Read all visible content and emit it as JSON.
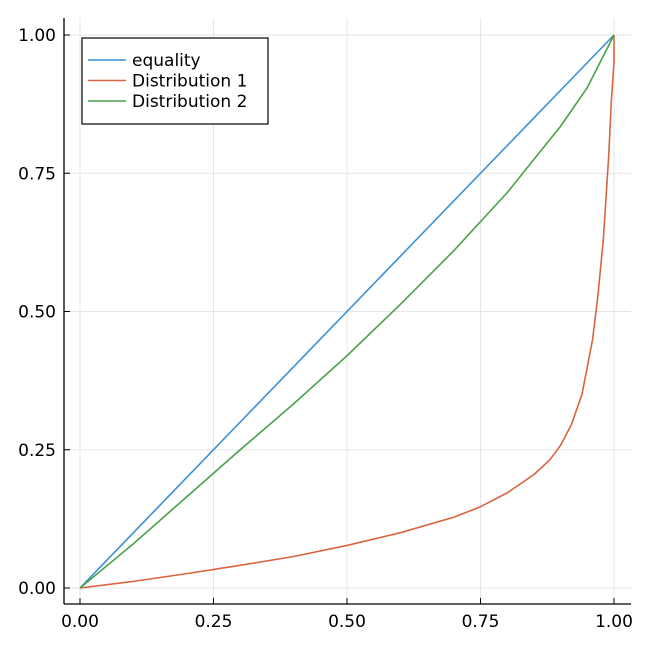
{
  "chart_data": {
    "type": "line",
    "title": "",
    "xlabel": "",
    "ylabel": "",
    "xlim": [
      0,
      1
    ],
    "ylim": [
      0,
      1
    ],
    "x_ticks": [
      0,
      0.25,
      0.5,
      0.75,
      1
    ],
    "x_tick_labels": [
      "0.00",
      "0.25",
      "0.50",
      "0.75",
      "1.00"
    ],
    "y_ticks": [
      0,
      0.25,
      0.5,
      0.75,
      1
    ],
    "y_tick_labels": [
      "0.00",
      "0.25",
      "0.50",
      "0.75",
      "1.00"
    ],
    "grid": true,
    "legend_position": "top-left",
    "series": [
      {
        "name": "equality",
        "color": "#3b8fd6",
        "x": [
          0,
          1
        ],
        "y": [
          0,
          1
        ]
      },
      {
        "name": "Distribution 1",
        "color": "#d9643d",
        "x": [
          0,
          0.1,
          0.2,
          0.3,
          0.4,
          0.5,
          0.6,
          0.7,
          0.75,
          0.8,
          0.85,
          0.88,
          0.9,
          0.92,
          0.94,
          0.96,
          0.97,
          0.98,
          0.99,
          0.995,
          1.0,
          1.0
        ],
        "y": [
          0,
          0.012,
          0.026,
          0.041,
          0.057,
          0.077,
          0.1,
          0.128,
          0.147,
          0.172,
          0.205,
          0.232,
          0.258,
          0.295,
          0.35,
          0.45,
          0.53,
          0.63,
          0.78,
          0.88,
          0.95,
          1.0
        ]
      },
      {
        "name": "Distribution 2",
        "color": "#4aa14a",
        "x": [
          0,
          0.1,
          0.2,
          0.3,
          0.4,
          0.5,
          0.6,
          0.7,
          0.8,
          0.9,
          0.95,
          1.0
        ],
        "y": [
          0,
          0.08,
          0.165,
          0.25,
          0.333,
          0.42,
          0.513,
          0.61,
          0.715,
          0.835,
          0.905,
          1.0
        ]
      }
    ]
  }
}
